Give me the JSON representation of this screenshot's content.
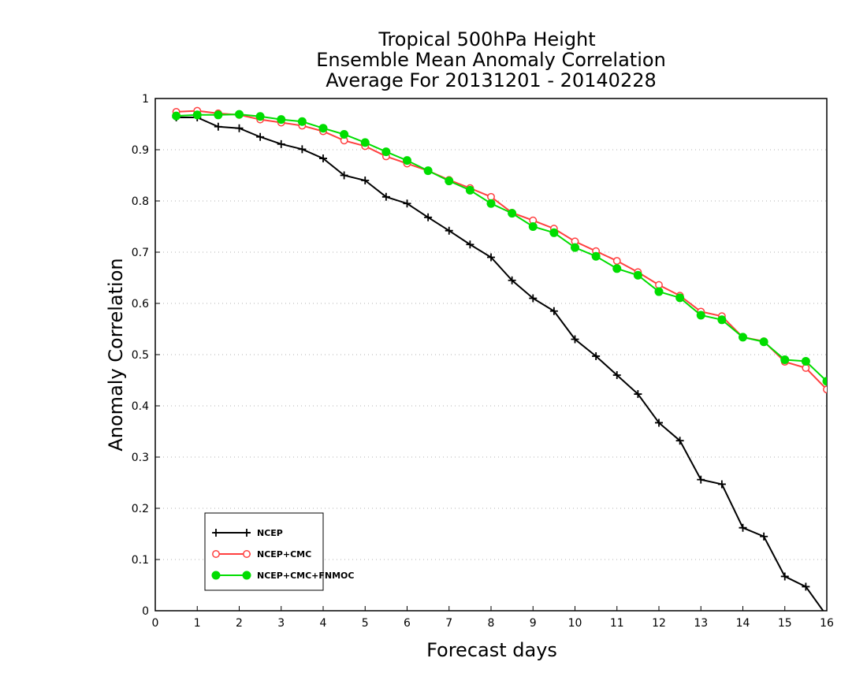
{
  "chart_data": {
    "type": "line",
    "title_lines": [
      "Tropical 500hPa Height",
      "Ensemble Mean Anomaly Correlation",
      "Average For 20131201 - 20140228"
    ],
    "xlabel": "Forecast days",
    "ylabel": "Anomaly Correlation",
    "xlim": [
      0,
      16
    ],
    "ylim": [
      0,
      1
    ],
    "x_ticks": [
      "0",
      "1",
      "2",
      "3",
      "4",
      "5",
      "6",
      "7",
      "8",
      "9",
      "10",
      "11",
      "12",
      "13",
      "14",
      "15",
      "16"
    ],
    "y_ticks": [
      "0",
      "0.1",
      "0.2",
      "0.3",
      "0.4",
      "0.5",
      "0.6",
      "0.7",
      "0.8",
      "0.9",
      "1"
    ],
    "grid": "horizontal dotted",
    "legend_position": "bottom-left",
    "x": [
      0.5,
      1,
      1.5,
      2,
      2.5,
      3,
      3.5,
      4,
      4.5,
      5,
      5.5,
      6,
      6.5,
      7,
      7.5,
      8,
      8.5,
      9,
      9.5,
      10,
      10.5,
      11,
      11.5,
      12,
      12.5,
      13,
      13.5,
      14,
      14.5,
      15,
      15.5,
      16
    ],
    "series": [
      {
        "name": "NCEP",
        "color": "#000000",
        "marker": "plus",
        "values": [
          0.963,
          0.963,
          0.945,
          0.942,
          0.925,
          0.911,
          0.901,
          0.883,
          0.85,
          0.84,
          0.808,
          0.795,
          0.768,
          0.742,
          0.715,
          0.69,
          0.645,
          0.61,
          0.585,
          0.53,
          0.497,
          0.46,
          0.423,
          0.367,
          0.332,
          0.256,
          0.247,
          0.162,
          0.145,
          0.067,
          0.047,
          -0.01
        ]
      },
      {
        "name": "NCEP+CMC",
        "color": "#ff4040",
        "marker": "open-circle",
        "values": [
          0.974,
          0.976,
          0.971,
          0.968,
          0.959,
          0.953,
          0.947,
          0.936,
          0.918,
          0.907,
          0.887,
          0.873,
          0.859,
          0.841,
          0.825,
          0.808,
          0.777,
          0.762,
          0.746,
          0.721,
          0.702,
          0.683,
          0.661,
          0.636,
          0.615,
          0.584,
          0.575,
          0.534,
          0.526,
          0.486,
          0.474,
          0.432
        ]
      },
      {
        "name": "NCEP+CMC+FNMOC",
        "color": "#00dd00",
        "marker": "filled-circle",
        "values": [
          0.966,
          0.968,
          0.968,
          0.969,
          0.965,
          0.959,
          0.955,
          0.942,
          0.93,
          0.914,
          0.896,
          0.879,
          0.859,
          0.839,
          0.821,
          0.795,
          0.776,
          0.75,
          0.738,
          0.709,
          0.692,
          0.668,
          0.655,
          0.623,
          0.611,
          0.577,
          0.568,
          0.534,
          0.525,
          0.49,
          0.487,
          0.448
        ]
      }
    ]
  }
}
